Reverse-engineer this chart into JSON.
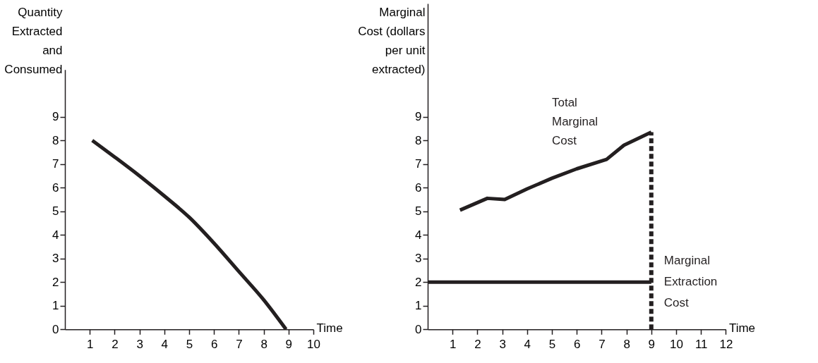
{
  "chart_data": [
    {
      "type": "line",
      "ylabel": "Quantity\nExtracted\nand\nConsumed",
      "xlabel": "Time",
      "xlim": [
        0,
        10
      ],
      "xticks": [
        1,
        2,
        3,
        4,
        5,
        6,
        7,
        8,
        9,
        10
      ],
      "ylim": [
        0,
        11
      ],
      "yticks": [
        0,
        1,
        2,
        3,
        4,
        5,
        6,
        7,
        8,
        9
      ],
      "grid": false,
      "legend": false,
      "line_style": "solid",
      "series": [
        {
          "color": "#231f20",
          "x": [
            1.1,
            2,
            3,
            4,
            5,
            6,
            7,
            8,
            8.9
          ],
          "values": [
            8,
            7.3,
            6.5,
            5.65,
            4.75,
            3.65,
            2.45,
            1.25,
            0
          ]
        }
      ]
    },
    {
      "type": "line",
      "ylabel": "Marginal\nCost (dollars\nper unit\nextracted)",
      "xlabel": "Time",
      "xlim": [
        0,
        12
      ],
      "xticks": [
        1,
        2,
        3,
        4,
        5,
        6,
        7,
        8,
        9,
        10,
        11,
        12
      ],
      "ylim": [
        0,
        13.8
      ],
      "yticks": [
        0,
        1,
        2,
        3,
        4,
        5,
        6,
        7,
        8,
        9
      ],
      "grid": false,
      "legend": false,
      "line_style": "solid",
      "series": [
        {
          "name": "Total Marginal Cost",
          "color": "#231f20",
          "x": [
            1.3,
            2.4,
            3.1,
            4,
            5,
            6,
            7.2,
            7.9,
            9
          ],
          "values": [
            5.05,
            5.55,
            5.5,
            5.95,
            6.4,
            6.8,
            7.2,
            7.8,
            8.35
          ]
        },
        {
          "name": "Marginal Extraction Cost",
          "color": "#231f20",
          "x": [
            0,
            9
          ],
          "values": [
            2,
            2
          ]
        },
        {
          "color": "#231f20",
          "x": [
            9,
            9
          ],
          "values": [
            0,
            8.35
          ],
          "line_style": "dashed"
        }
      ]
    }
  ]
}
